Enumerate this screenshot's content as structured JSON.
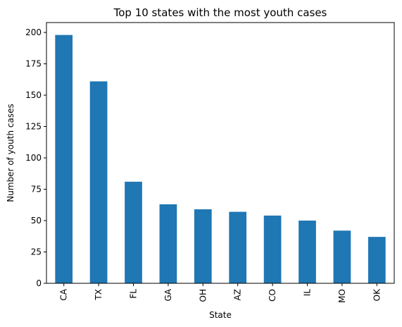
{
  "chart_data": {
    "type": "bar",
    "title": "Top 10 states with the most youth cases",
    "xlabel": "State",
    "ylabel": "Number of youth cases",
    "categories": [
      "CA",
      "TX",
      "FL",
      "GA",
      "OH",
      "AZ",
      "CO",
      "IL",
      "MO",
      "OK"
    ],
    "values": [
      198,
      161,
      81,
      63,
      59,
      57,
      54,
      50,
      42,
      37
    ],
    "ylim": [
      0,
      207.9
    ],
    "yticks": [
      0,
      25,
      50,
      75,
      100,
      125,
      150,
      175,
      200
    ],
    "grid": false,
    "legend": "none",
    "bar_color": "#1f77b4"
  }
}
